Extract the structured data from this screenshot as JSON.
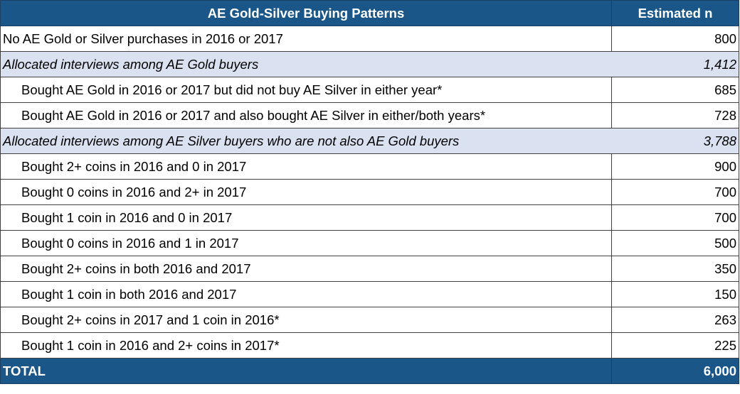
{
  "header": {
    "pattern": "AE Gold-Silver Buying Patterns",
    "n": "Estimated n"
  },
  "rows": [
    {
      "label": "No AE Gold or Silver purchases in 2016 or 2017",
      "n": "800",
      "type": "plain"
    },
    {
      "label": "Allocated interviews among AE Gold buyers",
      "n": "1,412",
      "type": "group"
    },
    {
      "label": "Bought AE Gold in 2016 or 2017 but did not buy AE Silver in either year*",
      "n": "685",
      "type": "indent"
    },
    {
      "label": "Bought AE Gold in 2016 or 2017 and also bought AE Silver in either/both years*",
      "n": "728",
      "type": "indent"
    },
    {
      "label": "Allocated interviews among AE Silver buyers who are not also AE Gold buyers",
      "n": "3,788",
      "type": "group"
    },
    {
      "label": "Bought 2+ coins in 2016 and 0 in 2017",
      "n": "900",
      "type": "indent"
    },
    {
      "label": "Bought 0 coins in 2016 and 2+ in 2017",
      "n": "700",
      "type": "indent"
    },
    {
      "label": "Bought 1 coin in 2016 and 0 in 2017",
      "n": "700",
      "type": "indent"
    },
    {
      "label": "Bought 0 coins in 2016 and 1 in 2017",
      "n": "500",
      "type": "indent"
    },
    {
      "label": "Bought 2+ coins in both 2016 and 2017",
      "n": "350",
      "type": "indent"
    },
    {
      "label": "Bought 1 coin in both 2016 and 2017",
      "n": "150",
      "type": "indent"
    },
    {
      "label": "Bought 2+ coins in 2017 and 1 coin in 2016*",
      "n": "263",
      "type": "indent"
    },
    {
      "label": "Bought 1 coin in 2016 and 2+ coins in 2017*",
      "n": "225",
      "type": "indent"
    }
  ],
  "total": {
    "label": "TOTAL",
    "n": "6,000"
  },
  "colors": {
    "header": "#1b5688",
    "group": "#dae1f1"
  }
}
